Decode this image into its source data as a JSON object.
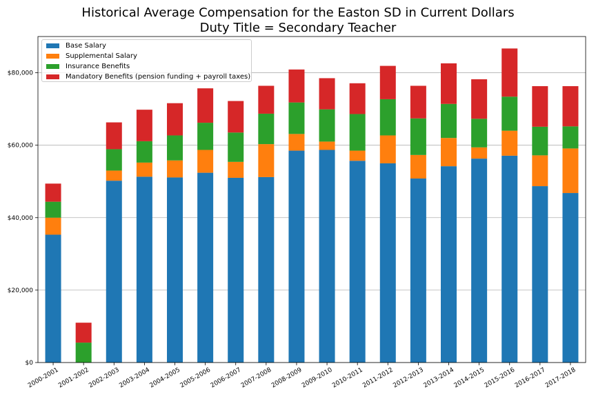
{
  "colors": {
    "base": "#1f77b4",
    "supplemental": "#ff7f0e",
    "insurance": "#2ca02c",
    "mandatory": "#d62728"
  },
  "chart_data": {
    "type": "bar",
    "stacked": true,
    "title": "Historical Average Compensation for the Easton SD in Current Dollars",
    "subtitle": "Duty Title = Secondary Teacher",
    "xlabel": "",
    "ylabel": "",
    "ylim": [
      0,
      90000
    ],
    "yticks": [
      0,
      20000,
      40000,
      60000,
      80000
    ],
    "ytick_labels": [
      "$0",
      "$20,000",
      "$40,000",
      "$60,000",
      "$80,000"
    ],
    "grid": "horizontal",
    "legend_position": "top-left",
    "categories": [
      "2000-2001",
      "2001-2002",
      "2002-2003",
      "2003-2004",
      "2004-2005",
      "2005-2006",
      "2006-2007",
      "2007-2008",
      "2008-2009",
      "2009-2010",
      "2010-2011",
      "2011-2012",
      "2012-2013",
      "2013-2014",
      "2014-2015",
      "2015-2016",
      "2016-2017",
      "2017-2018"
    ],
    "series": [
      {
        "name": "Base Salary",
        "color_key": "base",
        "values": [
          35300,
          0,
          50200,
          51300,
          51100,
          52400,
          51000,
          51200,
          58500,
          58700,
          55700,
          55000,
          50800,
          54200,
          56300,
          57100,
          48700,
          46800
        ]
      },
      {
        "name": "Supplemental Salary",
        "color_key": "supplemental",
        "values": [
          4700,
          0,
          2800,
          3900,
          4700,
          6300,
          4400,
          9100,
          4600,
          2300,
          2800,
          7700,
          6500,
          7800,
          3100,
          6900,
          8500,
          12300
        ]
      },
      {
        "name": "Insurance Benefits",
        "color_key": "insurance",
        "values": [
          4400,
          5500,
          5900,
          5900,
          6900,
          7500,
          8100,
          8400,
          8700,
          8900,
          10100,
          10000,
          10100,
          9400,
          7900,
          9400,
          7900,
          6100
        ]
      },
      {
        "name": "Mandatory Benefits (pension funding + payroll taxes)",
        "color_key": "mandatory",
        "values": [
          5000,
          5500,
          7400,
          8700,
          8900,
          9500,
          8700,
          7700,
          9100,
          8600,
          8500,
          9200,
          9000,
          11200,
          10900,
          13300,
          11200,
          11100
        ]
      }
    ]
  }
}
